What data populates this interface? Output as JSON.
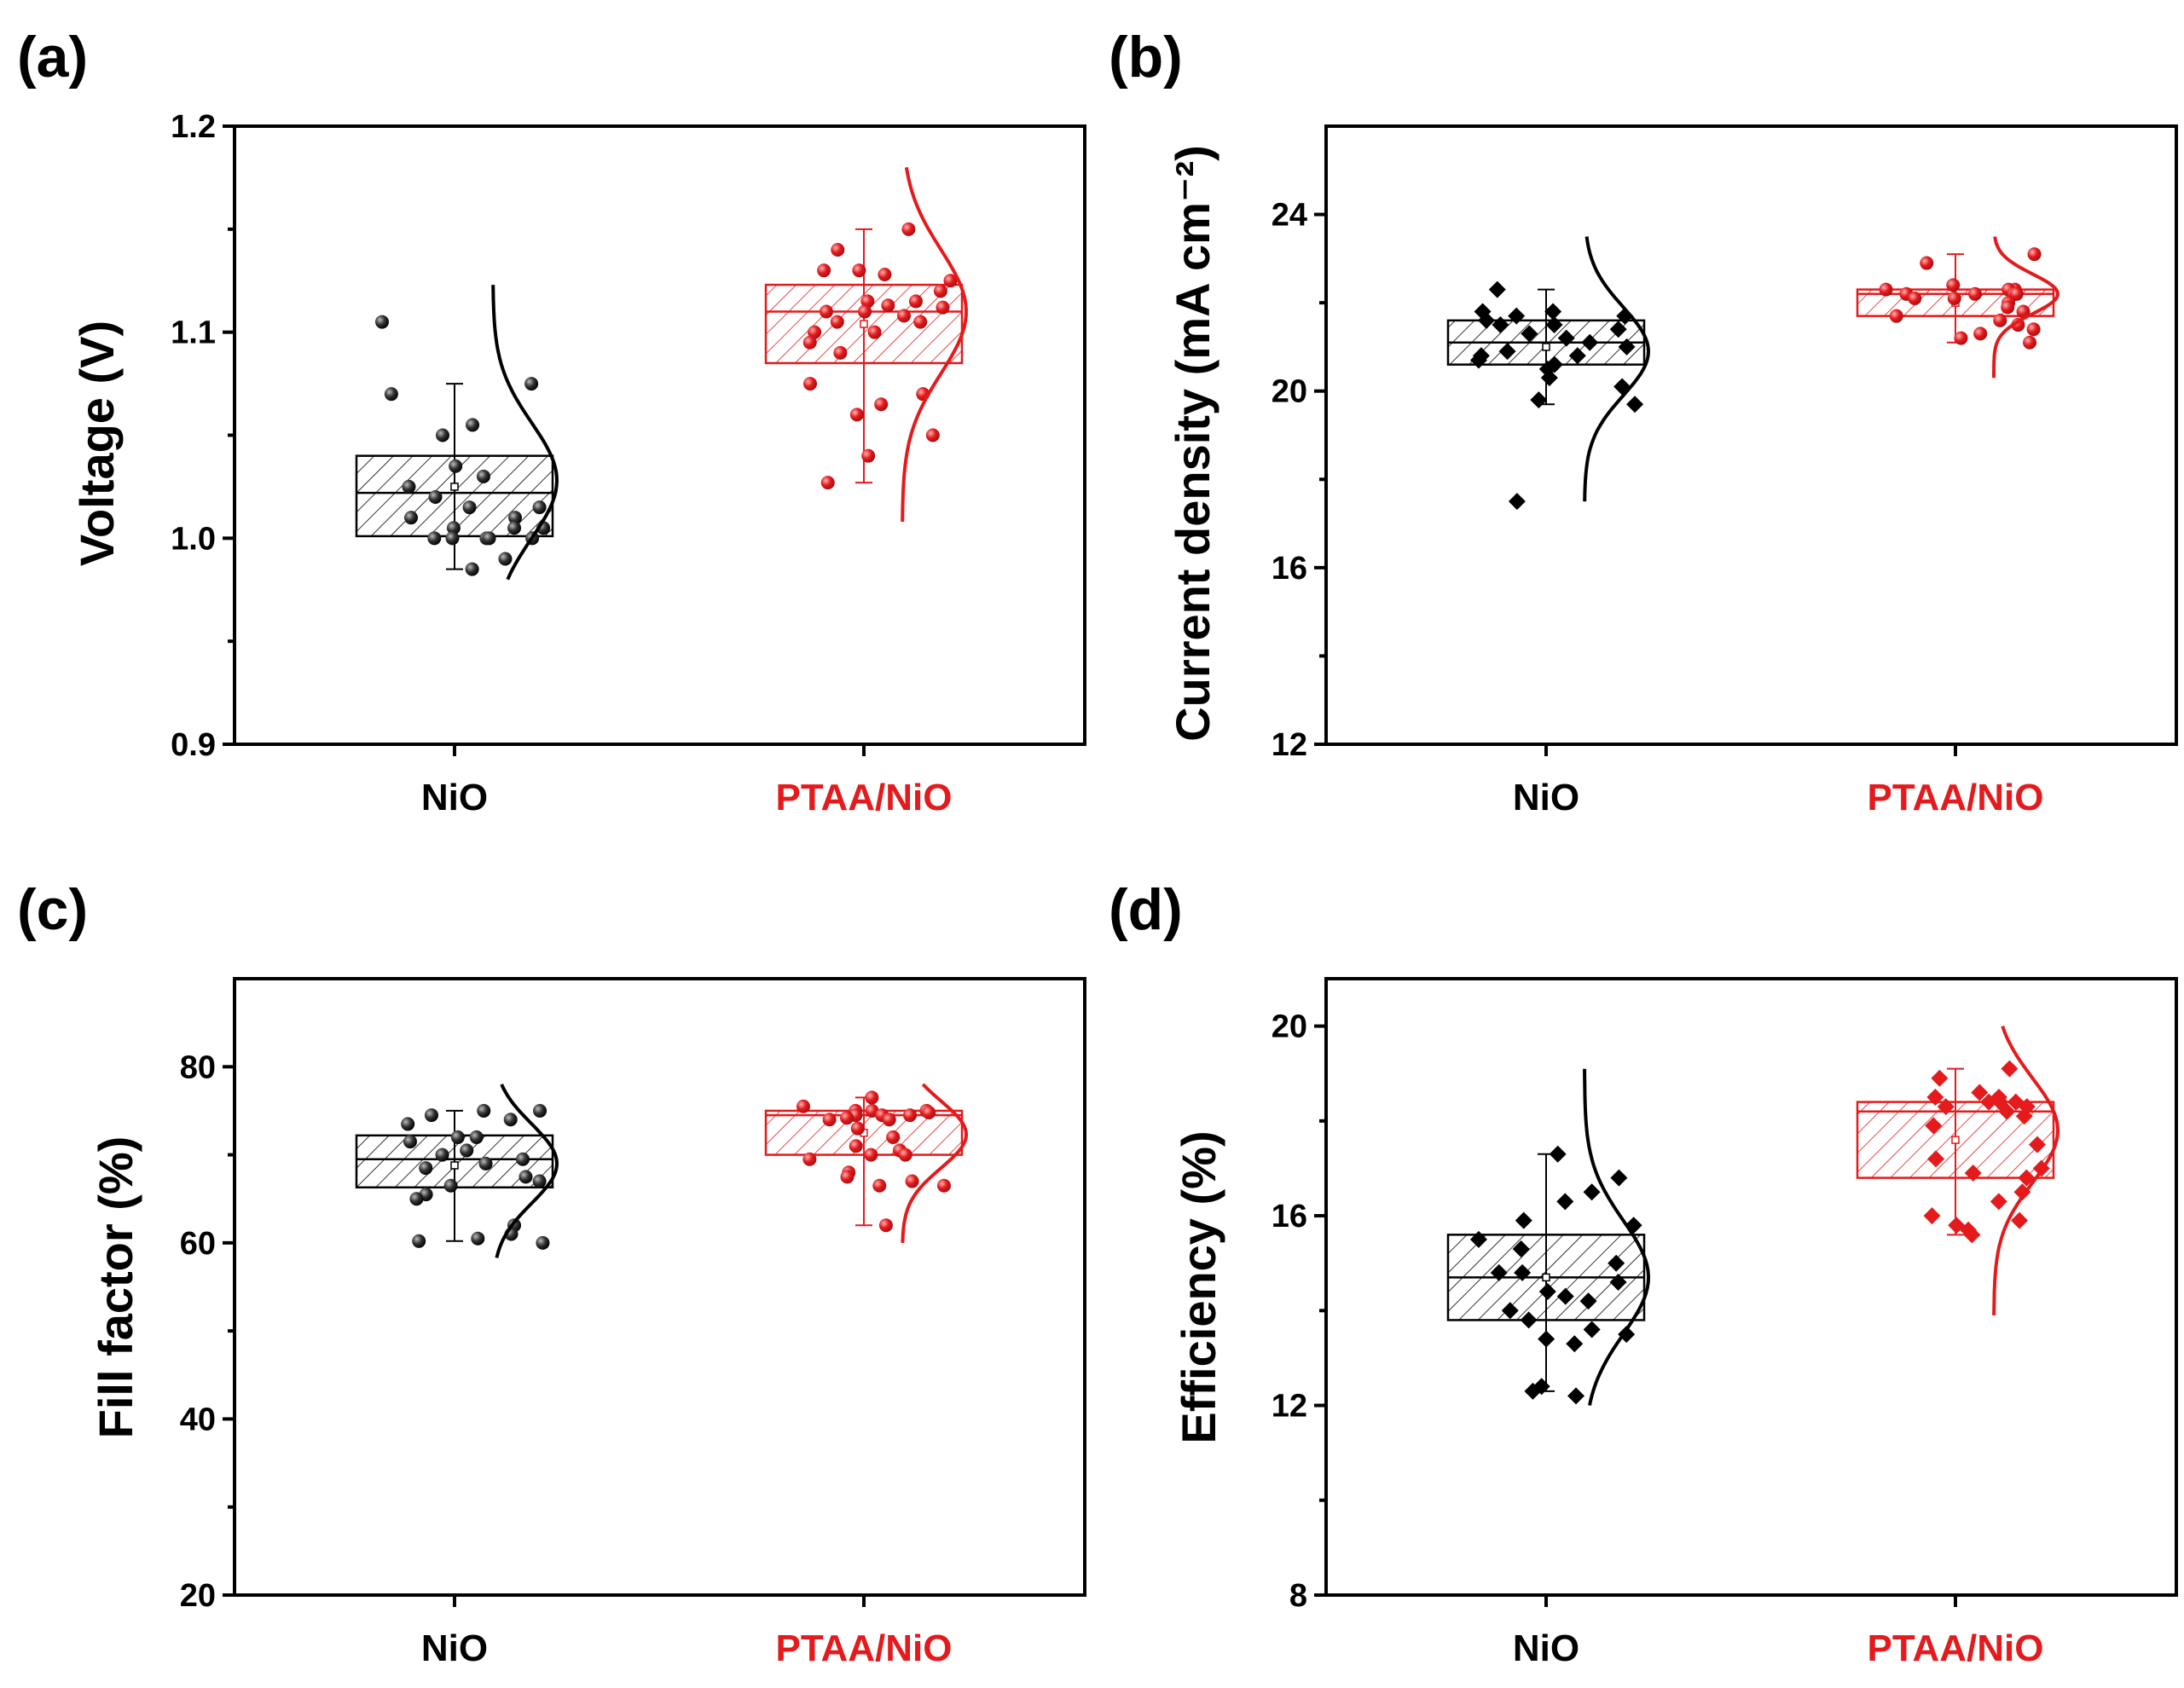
{
  "chart_data": [
    {
      "panel": "(a)",
      "type": "box",
      "ylabel": "Voltage (V)",
      "ylim": [
        0.9,
        1.2
      ],
      "yticks": [
        0.9,
        1.0,
        1.1,
        1.2
      ],
      "tick_decimals": 1,
      "categories": [
        "NiO",
        "PTAA/NiO"
      ],
      "groups": [
        {
          "name": "NiO",
          "color": "#000000",
          "marker": "circle",
          "box": {
            "q1": 1.001,
            "median": 1.022,
            "q3": 1.04,
            "mean": 1.025,
            "whisker_low": 0.985,
            "whisker_high": 1.075
          },
          "points": [
            1.105,
            1.075,
            1.07,
            1.055,
            1.05,
            1.035,
            1.03,
            1.025,
            1.02,
            1.015,
            1.015,
            1.01,
            1.01,
            1.005,
            1.005,
            1.005,
            1.0,
            1.0,
            1.0,
            1.0,
            0.99,
            0.985,
            1.0
          ],
          "dist": {
            "mean": 1.028,
            "sd": 0.028,
            "ymin": 0.98,
            "ymax": 1.123
          }
        },
        {
          "name": "PTAA/NiO",
          "color": "#e41a1c",
          "marker": "circle",
          "box": {
            "q1": 1.085,
            "median": 1.11,
            "q3": 1.123,
            "mean": 1.104,
            "whisker_low": 1.027,
            "whisker_high": 1.15
          },
          "points": [
            1.15,
            1.14,
            1.13,
            1.13,
            1.128,
            1.125,
            1.12,
            1.115,
            1.115,
            1.113,
            1.112,
            1.11,
            1.11,
            1.108,
            1.105,
            1.105,
            1.1,
            1.1,
            1.095,
            1.09,
            1.075,
            1.07,
            1.065,
            1.06,
            1.05,
            1.04,
            1.027
          ],
          "dist": {
            "mean": 1.11,
            "sd": 0.03,
            "ymin": 1.008,
            "ymax": 1.18
          }
        }
      ]
    },
    {
      "panel": "(b)",
      "type": "box",
      "ylabel": "Current density (mA cm⁻²)",
      "ylim": [
        12,
        26
      ],
      "yticks": [
        12,
        16,
        20,
        24
      ],
      "tick_decimals": 0,
      "categories": [
        "NiO",
        "PTAA/NiO"
      ],
      "groups": [
        {
          "name": "NiO",
          "color": "#000000",
          "marker": "diamond",
          "box": {
            "q1": 20.6,
            "median": 21.1,
            "q3": 21.6,
            "mean": 21.0,
            "whisker_low": 19.7,
            "whisker_high": 22.3
          },
          "points": [
            22.3,
            21.8,
            21.8,
            21.7,
            21.7,
            21.6,
            21.5,
            21.5,
            21.4,
            21.3,
            21.2,
            21.1,
            21.0,
            20.9,
            20.8,
            20.8,
            20.7,
            20.6,
            20.5,
            20.3,
            20.1,
            19.8,
            19.7,
            17.5
          ],
          "dist": {
            "mean": 20.9,
            "sd": 1.0,
            "ymin": 17.5,
            "ymax": 23.5
          }
        },
        {
          "name": "PTAA/NiO",
          "color": "#e41a1c",
          "marker": "circle",
          "box": {
            "q1": 21.7,
            "median": 22.2,
            "q3": 22.3,
            "mean": 22.0,
            "whisker_low": 21.1,
            "whisker_high": 23.1
          },
          "points": [
            23.1,
            22.9,
            22.4,
            22.3,
            22.3,
            22.3,
            22.2,
            22.2,
            22.2,
            22.2,
            22.2,
            22.1,
            22.1,
            22.0,
            21.9,
            21.8,
            21.7,
            21.6,
            21.5,
            21.4,
            21.3,
            21.2,
            21.1
          ],
          "dist": {
            "mean": 22.2,
            "sd": 0.45,
            "ymin": 20.3,
            "ymax": 23.5
          }
        }
      ]
    },
    {
      "panel": "(c)",
      "type": "box",
      "ylabel": "Fill factor (%)",
      "ylim": [
        20,
        90
      ],
      "yticks": [
        20,
        40,
        60,
        80
      ],
      "tick_decimals": 0,
      "categories": [
        "NiO",
        "PTAA/NiO"
      ],
      "groups": [
        {
          "name": "NiO",
          "color": "#000000",
          "marker": "circle",
          "box": {
            "q1": 66.3,
            "median": 69.5,
            "q3": 72.2,
            "mean": 68.8,
            "whisker_low": 60.2,
            "whisker_high": 75
          },
          "points": [
            75,
            75,
            74.5,
            74,
            73.5,
            72,
            72,
            71.5,
            70.5,
            70,
            69.5,
            69,
            68.5,
            67.5,
            67,
            66.5,
            65.5,
            65,
            62,
            61,
            60.5,
            60.2,
            60
          ],
          "dist": {
            "mean": 69.0,
            "sd": 4.5,
            "ymin": 58.3,
            "ymax": 78
          }
        },
        {
          "name": "PTAA/NiO",
          "color": "#e41a1c",
          "marker": "circle",
          "box": {
            "q1": 70,
            "median": 74.5,
            "q3": 75,
            "mean": 72.5,
            "whisker_low": 62,
            "whisker_high": 76.5
          },
          "points": [
            76.5,
            75.5,
            75,
            75,
            75,
            74.8,
            74.5,
            74.5,
            74.5,
            74.2,
            74,
            74,
            73,
            72,
            71,
            70.5,
            70,
            70,
            69.5,
            68,
            67.5,
            67,
            66.5,
            66.5,
            62
          ],
          "dist": {
            "mean": 72.3,
            "sd": 3.8,
            "ymin": 60,
            "ymax": 78
          }
        }
      ]
    },
    {
      "panel": "(d)",
      "type": "box",
      "ylabel": "Efficiency (%)",
      "ylim": [
        8,
        21
      ],
      "yticks": [
        8,
        12,
        16,
        20
      ],
      "tick_decimals": 0,
      "categories": [
        "NiO",
        "PTAA/NiO"
      ],
      "groups": [
        {
          "name": "NiO",
          "color": "#000000",
          "marker": "diamond",
          "box": {
            "q1": 13.8,
            "median": 14.7,
            "q3": 15.6,
            "mean": 14.7,
            "whisker_low": 12.3,
            "whisker_high": 17.3
          },
          "points": [
            17.3,
            16.8,
            16.5,
            16.3,
            15.9,
            15.8,
            15.5,
            15.3,
            15.0,
            14.8,
            14.8,
            14.6,
            14.4,
            14.3,
            14.2,
            14.0,
            13.8,
            13.6,
            13.5,
            13.4,
            13.3,
            12.4,
            12.3,
            12.2
          ],
          "dist": {
            "mean": 14.7,
            "sd": 1.2,
            "ymin": 12.0,
            "ymax": 19.1
          }
        },
        {
          "name": "PTAA/NiO",
          "color": "#e41a1c",
          "marker": "diamond",
          "box": {
            "q1": 16.8,
            "median": 18.2,
            "q3": 18.4,
            "mean": 17.6,
            "whisker_low": 15.6,
            "whisker_high": 19.1
          },
          "points": [
            19.1,
            18.9,
            18.6,
            18.5,
            18.5,
            18.4,
            18.4,
            18.4,
            18.3,
            18.3,
            18.2,
            18.1,
            17.9,
            17.5,
            17.2,
            17.0,
            16.9,
            16.8,
            16.5,
            16.3,
            16.0,
            15.9,
            15.8,
            15.7,
            15.6
          ],
          "dist": {
            "mean": 17.8,
            "sd": 1.1,
            "ymin": 13.9,
            "ymax": 20.0
          }
        }
      ]
    }
  ]
}
